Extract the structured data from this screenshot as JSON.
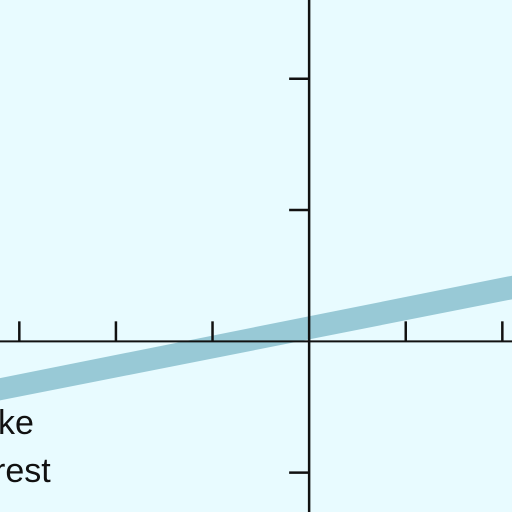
{
  "colors": {
    "background": "#e8fbff",
    "axis": "#111111",
    "band": "#98c9d6",
    "text": "#111111"
  },
  "chart_data": {
    "type": "area",
    "title": "",
    "xlabel": "",
    "ylabel": "",
    "x_ticks": [
      -3,
      -2,
      -1,
      0,
      1,
      2
    ],
    "y_ticks": [
      -1,
      1,
      2
    ],
    "xlim": [
      -3.2,
      2.1
    ],
    "ylim": [
      -1.3,
      2.6
    ],
    "grid": false,
    "series": [
      {
        "x": [
          -3.2,
          2.1
        ],
        "lower": [
          -0.45,
          0.32
        ],
        "upper": [
          -0.28,
          0.5
        ]
      }
    ],
    "legend_text": [
      "ke",
      "rest"
    ]
  }
}
